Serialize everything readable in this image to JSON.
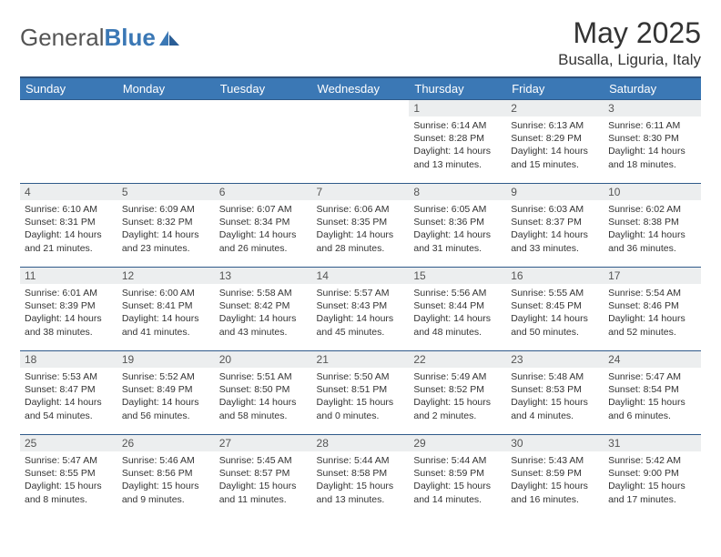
{
  "brand": {
    "part1": "General",
    "part2": "Blue"
  },
  "title": "May 2025",
  "location": "Busalla, Liguria, Italy",
  "dayHeaders": [
    "Sunday",
    "Monday",
    "Tuesday",
    "Wednesday",
    "Thursday",
    "Friday",
    "Saturday"
  ],
  "colors": {
    "headerBg": "#3b78b5",
    "headerText": "#ffffff",
    "dayNumBg": "#eceeef",
    "rowBorder": "#2f5a8a",
    "brandBlue": "#3b78b5"
  },
  "weeks": [
    [
      {
        "n": "",
        "sr": "",
        "ss": "",
        "dl": ""
      },
      {
        "n": "",
        "sr": "",
        "ss": "",
        "dl": ""
      },
      {
        "n": "",
        "sr": "",
        "ss": "",
        "dl": ""
      },
      {
        "n": "",
        "sr": "",
        "ss": "",
        "dl": ""
      },
      {
        "n": "1",
        "sr": "Sunrise: 6:14 AM",
        "ss": "Sunset: 8:28 PM",
        "dl": "Daylight: 14 hours and 13 minutes."
      },
      {
        "n": "2",
        "sr": "Sunrise: 6:13 AM",
        "ss": "Sunset: 8:29 PM",
        "dl": "Daylight: 14 hours and 15 minutes."
      },
      {
        "n": "3",
        "sr": "Sunrise: 6:11 AM",
        "ss": "Sunset: 8:30 PM",
        "dl": "Daylight: 14 hours and 18 minutes."
      }
    ],
    [
      {
        "n": "4",
        "sr": "Sunrise: 6:10 AM",
        "ss": "Sunset: 8:31 PM",
        "dl": "Daylight: 14 hours and 21 minutes."
      },
      {
        "n": "5",
        "sr": "Sunrise: 6:09 AM",
        "ss": "Sunset: 8:32 PM",
        "dl": "Daylight: 14 hours and 23 minutes."
      },
      {
        "n": "6",
        "sr": "Sunrise: 6:07 AM",
        "ss": "Sunset: 8:34 PM",
        "dl": "Daylight: 14 hours and 26 minutes."
      },
      {
        "n": "7",
        "sr": "Sunrise: 6:06 AM",
        "ss": "Sunset: 8:35 PM",
        "dl": "Daylight: 14 hours and 28 minutes."
      },
      {
        "n": "8",
        "sr": "Sunrise: 6:05 AM",
        "ss": "Sunset: 8:36 PM",
        "dl": "Daylight: 14 hours and 31 minutes."
      },
      {
        "n": "9",
        "sr": "Sunrise: 6:03 AM",
        "ss": "Sunset: 8:37 PM",
        "dl": "Daylight: 14 hours and 33 minutes."
      },
      {
        "n": "10",
        "sr": "Sunrise: 6:02 AM",
        "ss": "Sunset: 8:38 PM",
        "dl": "Daylight: 14 hours and 36 minutes."
      }
    ],
    [
      {
        "n": "11",
        "sr": "Sunrise: 6:01 AM",
        "ss": "Sunset: 8:39 PM",
        "dl": "Daylight: 14 hours and 38 minutes."
      },
      {
        "n": "12",
        "sr": "Sunrise: 6:00 AM",
        "ss": "Sunset: 8:41 PM",
        "dl": "Daylight: 14 hours and 41 minutes."
      },
      {
        "n": "13",
        "sr": "Sunrise: 5:58 AM",
        "ss": "Sunset: 8:42 PM",
        "dl": "Daylight: 14 hours and 43 minutes."
      },
      {
        "n": "14",
        "sr": "Sunrise: 5:57 AM",
        "ss": "Sunset: 8:43 PM",
        "dl": "Daylight: 14 hours and 45 minutes."
      },
      {
        "n": "15",
        "sr": "Sunrise: 5:56 AM",
        "ss": "Sunset: 8:44 PM",
        "dl": "Daylight: 14 hours and 48 minutes."
      },
      {
        "n": "16",
        "sr": "Sunrise: 5:55 AM",
        "ss": "Sunset: 8:45 PM",
        "dl": "Daylight: 14 hours and 50 minutes."
      },
      {
        "n": "17",
        "sr": "Sunrise: 5:54 AM",
        "ss": "Sunset: 8:46 PM",
        "dl": "Daylight: 14 hours and 52 minutes."
      }
    ],
    [
      {
        "n": "18",
        "sr": "Sunrise: 5:53 AM",
        "ss": "Sunset: 8:47 PM",
        "dl": "Daylight: 14 hours and 54 minutes."
      },
      {
        "n": "19",
        "sr": "Sunrise: 5:52 AM",
        "ss": "Sunset: 8:49 PM",
        "dl": "Daylight: 14 hours and 56 minutes."
      },
      {
        "n": "20",
        "sr": "Sunrise: 5:51 AM",
        "ss": "Sunset: 8:50 PM",
        "dl": "Daylight: 14 hours and 58 minutes."
      },
      {
        "n": "21",
        "sr": "Sunrise: 5:50 AM",
        "ss": "Sunset: 8:51 PM",
        "dl": "Daylight: 15 hours and 0 minutes."
      },
      {
        "n": "22",
        "sr": "Sunrise: 5:49 AM",
        "ss": "Sunset: 8:52 PM",
        "dl": "Daylight: 15 hours and 2 minutes."
      },
      {
        "n": "23",
        "sr": "Sunrise: 5:48 AM",
        "ss": "Sunset: 8:53 PM",
        "dl": "Daylight: 15 hours and 4 minutes."
      },
      {
        "n": "24",
        "sr": "Sunrise: 5:47 AM",
        "ss": "Sunset: 8:54 PM",
        "dl": "Daylight: 15 hours and 6 minutes."
      }
    ],
    [
      {
        "n": "25",
        "sr": "Sunrise: 5:47 AM",
        "ss": "Sunset: 8:55 PM",
        "dl": "Daylight: 15 hours and 8 minutes."
      },
      {
        "n": "26",
        "sr": "Sunrise: 5:46 AM",
        "ss": "Sunset: 8:56 PM",
        "dl": "Daylight: 15 hours and 9 minutes."
      },
      {
        "n": "27",
        "sr": "Sunrise: 5:45 AM",
        "ss": "Sunset: 8:57 PM",
        "dl": "Daylight: 15 hours and 11 minutes."
      },
      {
        "n": "28",
        "sr": "Sunrise: 5:44 AM",
        "ss": "Sunset: 8:58 PM",
        "dl": "Daylight: 15 hours and 13 minutes."
      },
      {
        "n": "29",
        "sr": "Sunrise: 5:44 AM",
        "ss": "Sunset: 8:59 PM",
        "dl": "Daylight: 15 hours and 14 minutes."
      },
      {
        "n": "30",
        "sr": "Sunrise: 5:43 AM",
        "ss": "Sunset: 8:59 PM",
        "dl": "Daylight: 15 hours and 16 minutes."
      },
      {
        "n": "31",
        "sr": "Sunrise: 5:42 AM",
        "ss": "Sunset: 9:00 PM",
        "dl": "Daylight: 15 hours and 17 minutes."
      }
    ]
  ]
}
